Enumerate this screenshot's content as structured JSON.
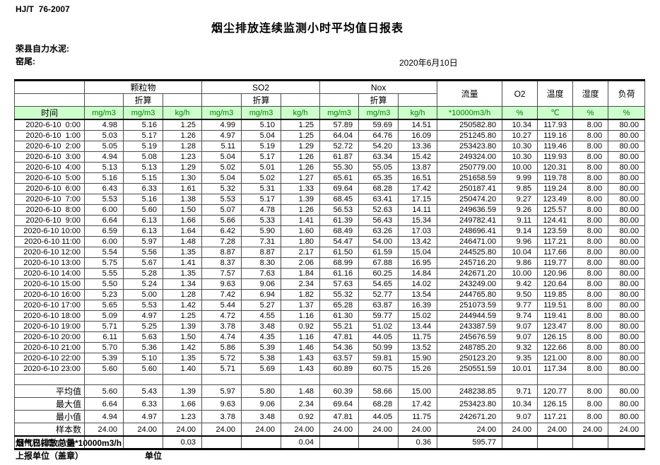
{
  "page": {
    "doc_number": "HJ/T  76-2007",
    "title": "烟尘排放连续监测小时平均值日报表",
    "company": "荣县自力水泥:",
    "location": "窑尾:",
    "date": "2020年6月10日"
  },
  "table": {
    "time_header": "时间",
    "group_headers": [
      "颗粒物",
      "SO2",
      "Nox"
    ],
    "single_columns": [
      "流量",
      "O2",
      "温度",
      "湿度",
      "负荷"
    ],
    "converted_label": "折算",
    "units": [
      "mg/m3",
      "mg/m3",
      "kg/h",
      "mg/m3",
      "mg/m3",
      "kg/h",
      "mg/m3",
      "mg/m3",
      "kg/h",
      "*10000m3/h",
      "%",
      "℃",
      "%",
      "%"
    ],
    "rows": [
      [
        "2020-6-10  0:00",
        "4.98",
        "5.16",
        "1.25",
        "4.99",
        "5.10",
        "1.25",
        "57.89",
        "59.69",
        "14.51",
        "250582.80",
        "10.34",
        "117.93",
        "8.00",
        "80.00"
      ],
      [
        "2020-6-10  1:00",
        "5.03",
        "5.17",
        "1.26",
        "4.97",
        "5.04",
        "1.25",
        "64.04",
        "64.76",
        "16.09",
        "251245.80",
        "10.27",
        "119.16",
        "8.00",
        "80.00"
      ],
      [
        "2020-6-10  2:00",
        "5.05",
        "5.19",
        "1.28",
        "5.11",
        "5.19",
        "1.29",
        "52.72",
        "54.20",
        "13.36",
        "253423.80",
        "10.30",
        "119.46",
        "8.00",
        "80.00"
      ],
      [
        "2020-6-10  3:00",
        "4.94",
        "5.08",
        "1.23",
        "5.04",
        "5.17",
        "1.26",
        "61.87",
        "63.34",
        "15.42",
        "249324.00",
        "10.30",
        "119.93",
        "8.00",
        "80.00"
      ],
      [
        "2020-6-10  4:00",
        "5.13",
        "5.13",
        "1.29",
        "5.02",
        "5.01",
        "1.26",
        "55.30",
        "55.05",
        "13.87",
        "250779.00",
        "10.00",
        "120.31",
        "8.00",
        "80.00"
      ],
      [
        "2020-6-10  5:00",
        "5.16",
        "5.15",
        "1.30",
        "5.04",
        "5.02",
        "1.27",
        "65.61",
        "65.35",
        "16.51",
        "251658.59",
        "9.99",
        "119.78",
        "8.00",
        "80.00"
      ],
      [
        "2020-6-10  6:00",
        "6.43",
        "6.33",
        "1.61",
        "5.32",
        "5.31",
        "1.33",
        "69.64",
        "68.28",
        "17.42",
        "250187.41",
        "9.85",
        "119.24",
        "8.00",
        "80.00"
      ],
      [
        "2020-6-10  7:00",
        "5.53",
        "5.16",
        "1.38",
        "5.53",
        "5.17",
        "1.39",
        "68.45",
        "63.41",
        "17.15",
        "250474.20",
        "9.27",
        "123.49",
        "8.00",
        "80.00"
      ],
      [
        "2020-6-10  8:00",
        "6.00",
        "5.60",
        "1.50",
        "5.07",
        "4.78",
        "1.26",
        "56.53",
        "52.63",
        "14.11",
        "249636.59",
        "9.26",
        "125.57",
        "8.00",
        "80.00"
      ],
      [
        "2020-6-10  9:00",
        "6.64",
        "6.13",
        "1.66",
        "5.66",
        "5.33",
        "1.41",
        "61.39",
        "56.43",
        "15.34",
        "249782.41",
        "9.11",
        "124.41",
        "8.00",
        "80.00"
      ],
      [
        "2020-6-10 10:00",
        "6.59",
        "6.13",
        "1.64",
        "6.42",
        "5.90",
        "1.60",
        "68.49",
        "63.26",
        "17.03",
        "248696.41",
        "9.14",
        "123.59",
        "8.00",
        "80.00"
      ],
      [
        "2020-6-10 11:00",
        "6.00",
        "5.97",
        "1.48",
        "7.28",
        "7.31",
        "1.80",
        "54.47",
        "54.00",
        "13.42",
        "246471.00",
        "9.96",
        "117.21",
        "8.00",
        "80.00"
      ],
      [
        "2020-6-10 12:00",
        "5.54",
        "5.56",
        "1.35",
        "8.87",
        "8.87",
        "2.17",
        "61.50",
        "61.59",
        "15.04",
        "244525.80",
        "10.04",
        "117.66",
        "8.00",
        "80.00"
      ],
      [
        "2020-6-10 13:00",
        "5.75",
        "5.67",
        "1.41",
        "8.37",
        "8.30",
        "2.06",
        "68.99",
        "67.88",
        "16.95",
        "245716.20",
        "9.86",
        "119.77",
        "8.00",
        "80.00"
      ],
      [
        "2020-6-10 14:00",
        "5.55",
        "5.28",
        "1.35",
        "7.57",
        "7.63",
        "1.84",
        "61.16",
        "60.25",
        "14.84",
        "242671.20",
        "10.00",
        "120.96",
        "8.00",
        "80.00"
      ],
      [
        "2020-6-10 15:00",
        "5.50",
        "5.24",
        "1.34",
        "9.63",
        "9.06",
        "2.34",
        "57.63",
        "54.65",
        "14.02",
        "243249.00",
        "9.42",
        "120.64",
        "8.00",
        "80.00"
      ],
      [
        "2020-6-10 16:00",
        "5.23",
        "5.00",
        "1.28",
        "7.42",
        "6.94",
        "1.82",
        "55.32",
        "52.77",
        "13.54",
        "244765.80",
        "9.50",
        "119.85",
        "8.00",
        "80.00"
      ],
      [
        "2020-6-10 17:00",
        "5.65",
        "5.53",
        "1.42",
        "5.44",
        "5.27",
        "1.37",
        "65.28",
        "63.87",
        "16.39",
        "251073.59",
        "9.77",
        "119.51",
        "8.00",
        "80.00"
      ],
      [
        "2020-6-10 18:00",
        "5.09",
        "4.97",
        "1.25",
        "4.72",
        "4.55",
        "1.16",
        "61.30",
        "59.77",
        "15.02",
        "244944.59",
        "9.74",
        "119.41",
        "8.00",
        "80.00"
      ],
      [
        "2020-6-10 19:00",
        "5.71",
        "5.25",
        "1.39",
        "3.78",
        "3.48",
        "0.92",
        "55.21",
        "51.02",
        "13.44",
        "243387.59",
        "9.07",
        "123.47",
        "8.00",
        "80.00"
      ],
      [
        "2020-6-10 20:00",
        "6.11",
        "5.63",
        "1.50",
        "4.74",
        "4.35",
        "1.16",
        "47.81",
        "44.05",
        "11.75",
        "245676.59",
        "9.07",
        "126.15",
        "8.00",
        "80.00"
      ],
      [
        "2020-6-10 21:00",
        "5.70",
        "5.36",
        "1.42",
        "5.86",
        "5.39",
        "1.46",
        "54.36",
        "50.99",
        "13.52",
        "248785.20",
        "9.32",
        "122.66",
        "8.00",
        "80.00"
      ],
      [
        "2020-6-10 22:00",
        "5.39",
        "5.10",
        "1.35",
        "5.72",
        "5.38",
        "1.43",
        "63.57",
        "59.81",
        "15.90",
        "250123.20",
        "9.35",
        "121.00",
        "8.00",
        "80.00"
      ],
      [
        "2020-6-10 23:00",
        "5.60",
        "5.60",
        "1.40",
        "5.71",
        "5.69",
        "1.43",
        "60.89",
        "60.75",
        "15.26",
        "250551.59",
        "10.01",
        "117.34",
        "8.00",
        "80.00"
      ]
    ],
    "summary": [
      {
        "label": "平均值",
        "values": [
          "5.60",
          "5.43",
          "1.39",
          "5.97",
          "5.80",
          "1.48",
          "60.39",
          "58.66",
          "15.00",
          "248238.85",
          "9.71",
          "120.77",
          "8.00",
          "80.00"
        ]
      },
      {
        "label": "最大值",
        "values": [
          "6.64",
          "6.33",
          "1.66",
          "9.63",
          "9.06",
          "2.34",
          "69.64",
          "68.28",
          "17.42",
          "253423.80",
          "10.34",
          "126.15",
          "8.00",
          "80.00"
        ]
      },
      {
        "label": "最小值",
        "values": [
          "4.94",
          "4.97",
          "1.23",
          "3.78",
          "3.48",
          "0.92",
          "47.81",
          "44.05",
          "11.75",
          "242671.20",
          "9.07",
          "117.21",
          "8.00",
          "80.00"
        ]
      },
      {
        "label": "样本数",
        "values": [
          "24.00",
          "24.00",
          "24.00",
          "24.00",
          "24.00",
          "24.00",
          "24.00",
          "24.00",
          "24.00",
          "24.00",
          "24.00",
          "24.00",
          "24.00",
          "24.00"
        ]
      },
      {
        "label": "日排放总量 (T/D)",
        "values": [
          "",
          "",
          "0.03",
          "",
          "",
          "0.04",
          "",
          "",
          "0.36",
          "595.77",
          "",
          "",
          "",
          ""
        ]
      }
    ]
  },
  "footer": {
    "flue_total": "烟气日排放总量*10000m3/h",
    "report_unit": "上报单位（盖章）",
    "unit_label": "单位"
  }
}
